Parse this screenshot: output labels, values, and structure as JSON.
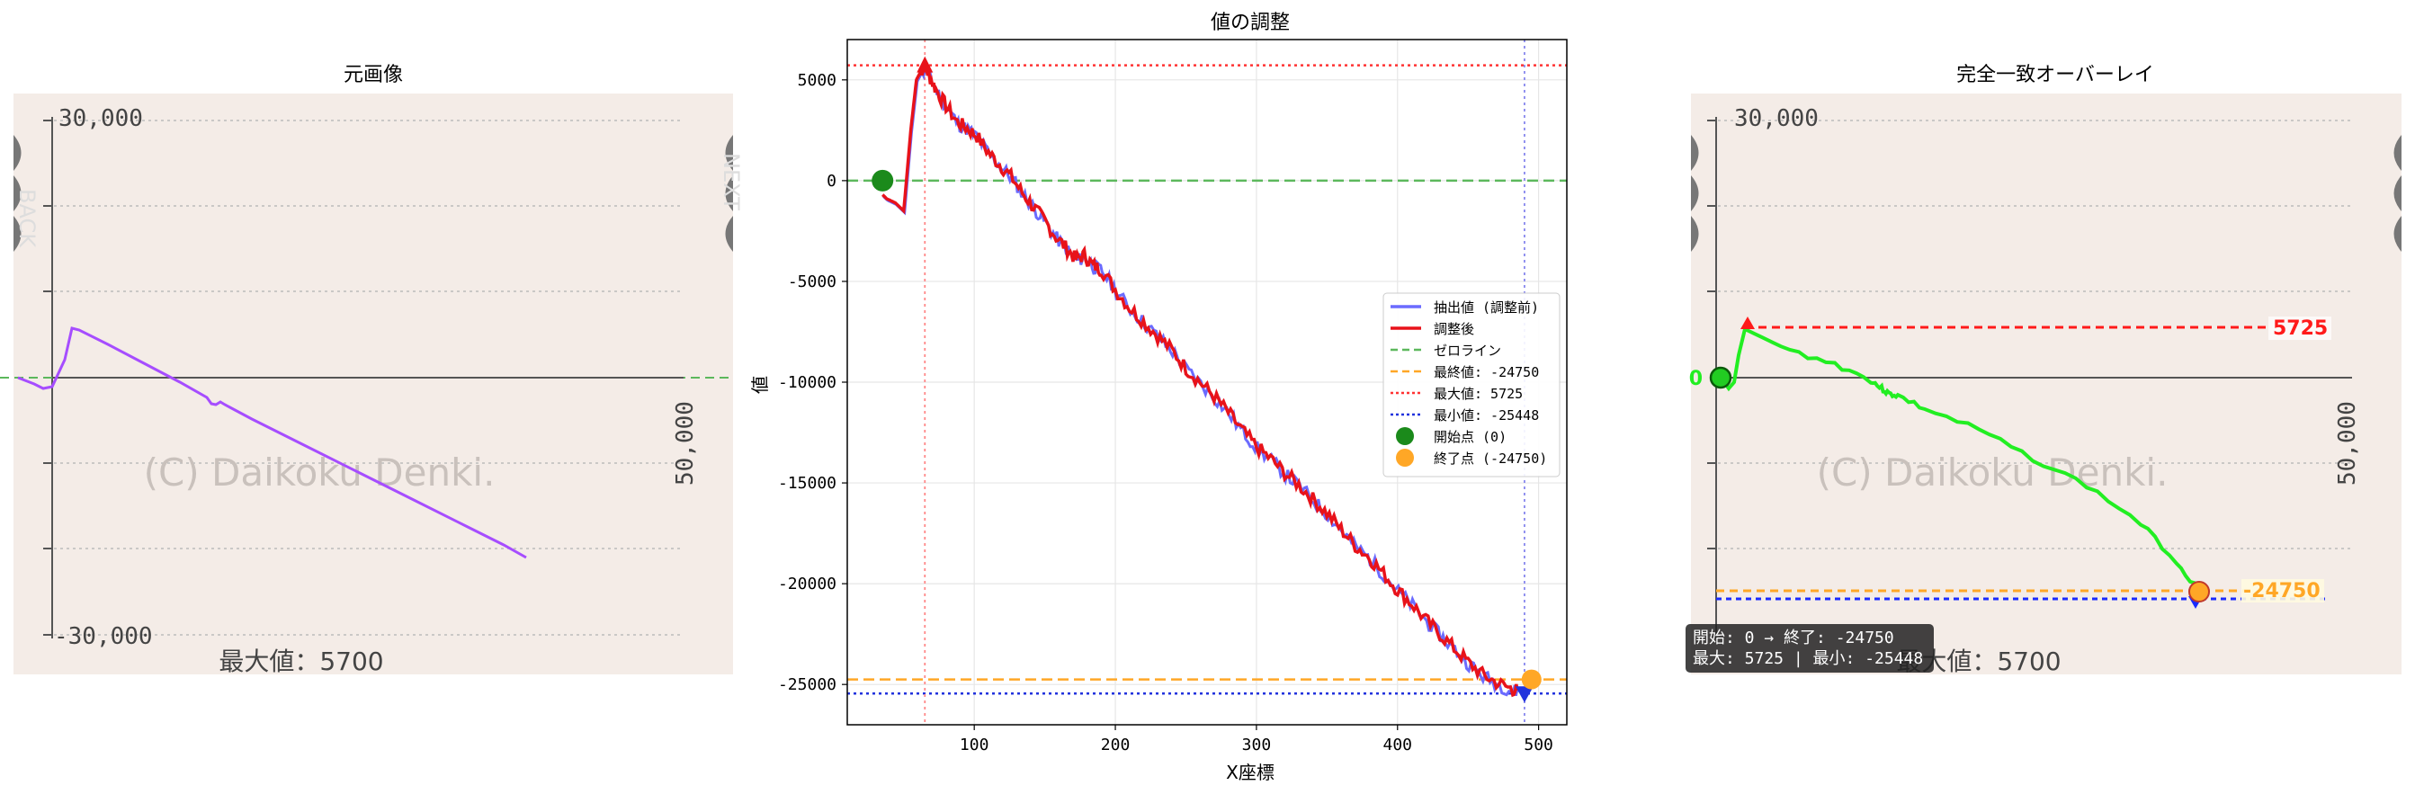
{
  "chart_data": [
    {
      "type": "line",
      "title": "元画像",
      "y_axis_top_label": "30,000",
      "y_axis_bottom_label": "-30,000",
      "right_axis_label": "50,000",
      "watermark": "(C) Daikoku Denki.",
      "caption": "最大値：5700",
      "side_button_left": "BACK",
      "side_button_right": "NEXT",
      "line_color": "#a64dff",
      "zero_line_color": "#5cb85c"
    },
    {
      "type": "line",
      "title": "値の調整",
      "xlabel": "X座標",
      "ylabel": "値",
      "xlim": [
        10,
        520
      ],
      "ylim": [
        -27000,
        7000
      ],
      "x_ticks": [
        100,
        200,
        300,
        400,
        500
      ],
      "y_ticks": [
        5000,
        0,
        -5000,
        -10000,
        -15000,
        -20000,
        -25000
      ],
      "grid": true,
      "legend_placement": "center-right",
      "legend": [
        {
          "label": "抽出値 (調整前)",
          "color": "#6b6bff",
          "style": "line"
        },
        {
          "label": "調整後",
          "color": "#e8121a",
          "style": "line"
        },
        {
          "label": "ゼロライン",
          "color": "#5cb85c",
          "style": "dashed"
        },
        {
          "label": "最終値: -24750",
          "color": "#ffa726",
          "style": "dashed"
        },
        {
          "label": "最大値: 5725",
          "color": "#ff3333",
          "style": "dotted"
        },
        {
          "label": "最小値: -25448",
          "color": "#2233dd",
          "style": "dotted"
        },
        {
          "label": "開始点 (0)",
          "color": "#1b8a1b",
          "style": "marker"
        },
        {
          "label": "終了点 (-24750)",
          "color": "#ffa726",
          "style": "marker"
        }
      ],
      "series": [
        {
          "x": [
            35,
            38,
            44,
            50,
            55,
            59,
            62,
            65,
            68,
            73,
            80,
            88,
            95,
            102,
            110,
            118,
            126,
            134,
            142,
            150,
            158,
            166,
            172,
            178,
            184,
            190,
            200,
            210,
            220,
            230,
            240,
            250,
            260,
            270,
            280,
            290,
            300,
            310,
            320,
            330,
            340,
            350,
            360,
            370,
            380,
            390,
            400,
            410,
            420,
            430,
            440,
            450,
            460,
            470,
            480,
            485
          ],
          "y": [
            -700,
            -900,
            -1100,
            -1500,
            2500,
            5000,
            5400,
            5700,
            5200,
            4500,
            3700,
            2900,
            2600,
            2200,
            1400,
            800,
            200,
            -600,
            -1300,
            -2000,
            -2800,
            -3400,
            -3900,
            -3700,
            -4200,
            -4400,
            -5400,
            -6300,
            -7000,
            -7700,
            -8400,
            -9300,
            -10000,
            -10700,
            -11500,
            -12400,
            -13200,
            -13800,
            -14500,
            -15100,
            -15800,
            -16500,
            -17300,
            -18100,
            -18700,
            -19500,
            -20300,
            -21000,
            -21800,
            -22500,
            -23200,
            -23900,
            -24500,
            -24900,
            -25200,
            -25300
          ]
        }
      ],
      "markers": {
        "start": {
          "x": 35,
          "y": 0
        },
        "end": {
          "x": 495,
          "y": -24750
        },
        "max": {
          "x": 65,
          "y": 5725
        },
        "min": {
          "x": 490,
          "y": -25448
        }
      },
      "hlines": {
        "zero": 0,
        "final": -24750,
        "max": 5725,
        "min": -25448
      },
      "vlines": {
        "max_x": 65,
        "min_x": 490
      }
    },
    {
      "type": "line",
      "title": "完全一致オーバーレイ",
      "y_axis_top_label": "30,000",
      "right_axis_label": "50,000",
      "watermark": "(C) Daikoku Denki.",
      "caption": "最大値：5700",
      "max_label": "5725",
      "final_label": "-24750",
      "zero_label": "0",
      "info_line_1": "開始: 0 → 終了: -24750",
      "info_line_2": "最大: 5725 | 最小: -25448",
      "line_color": "#22ee22"
    }
  ]
}
